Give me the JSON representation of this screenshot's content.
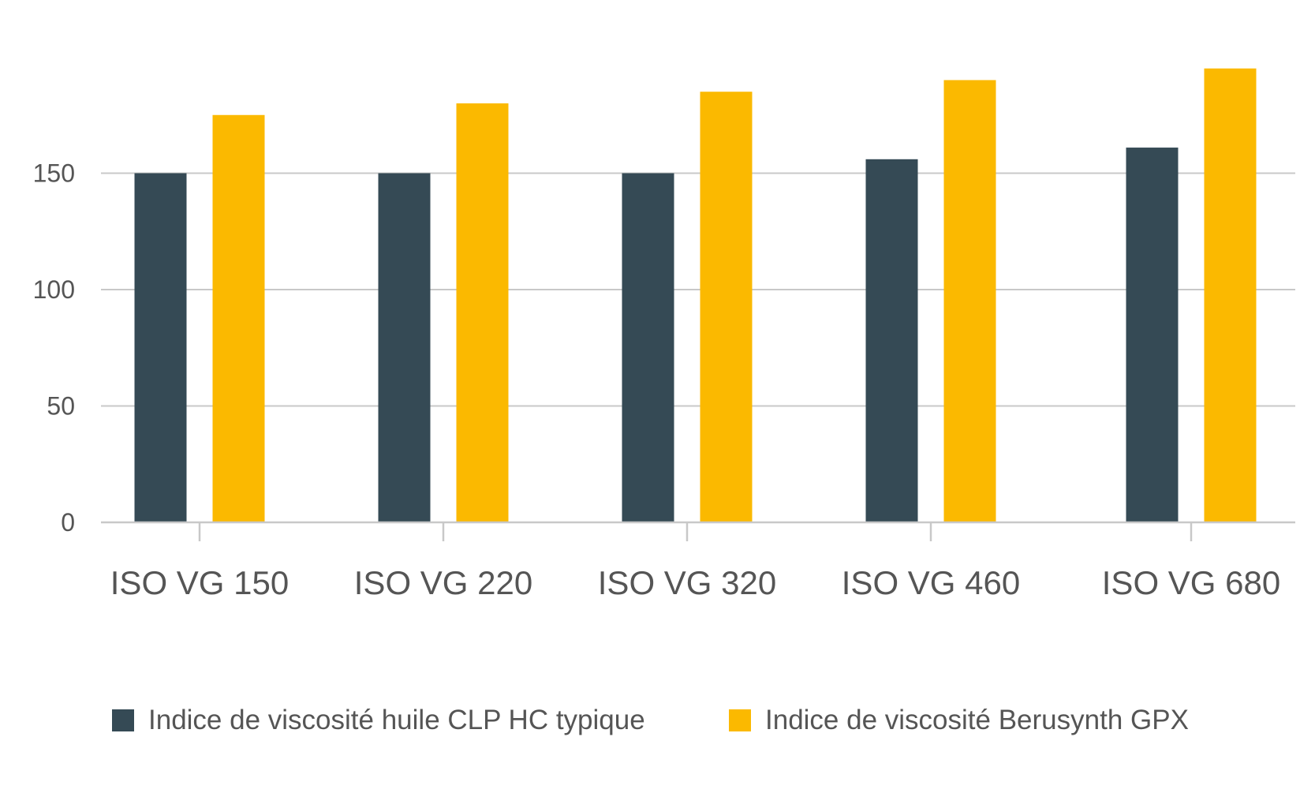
{
  "chart_data": {
    "type": "bar",
    "categories": [
      "ISO VG 150",
      "ISO VG 220",
      "ISO VG 320",
      "ISO VG 460",
      "ISO VG 680"
    ],
    "series": [
      {
        "name": "Indice de viscosité huile CLP HC typique",
        "values": [
          150,
          150,
          150,
          156,
          161
        ],
        "color": "#354a55"
      },
      {
        "name": "Indice de viscosité Berusynth GPX",
        "values": [
          175,
          180,
          185,
          190,
          195
        ],
        "color": "#fbb900"
      }
    ],
    "yticks": [
      0,
      50,
      100,
      150
    ],
    "ylim": [
      0,
      200
    ],
    "grid": true,
    "legend_position": "bottom"
  }
}
